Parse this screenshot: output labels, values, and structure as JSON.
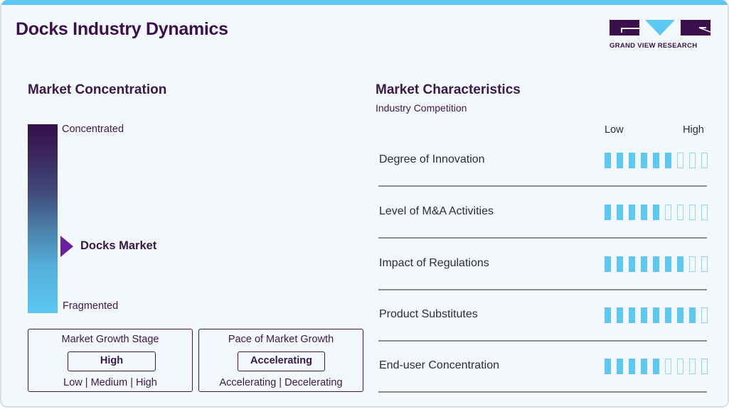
{
  "header": {
    "title": "Docks Industry Dynamics",
    "logo_text": "GRAND VIEW RESEARCH"
  },
  "colors": {
    "brand_purple": "#3a0f4b",
    "accent_blue": "#5bc9f2",
    "marker_purple": "#6a1fa0"
  },
  "market_concentration": {
    "heading": "Market Concentration",
    "top_label": "Concentrated",
    "bottom_label": "Fragmented",
    "marker_label": "Docks Market",
    "marker_position_pct": 64
  },
  "growth_stage": {
    "title": "Market Growth Stage",
    "value": "High",
    "options": "Low | Medium | High"
  },
  "growth_pace": {
    "title": "Pace of Market Growth",
    "value": "Accelerating",
    "options": "Accelerating | Decelerating"
  },
  "market_characteristics": {
    "heading": "Market Characteristics",
    "subheading": "Industry Competition",
    "scale_low": "Low",
    "scale_high": "High",
    "max_score": 9,
    "rows": [
      {
        "label": "Degree of Innovation",
        "score": 6
      },
      {
        "label": "Level of M&A Activities",
        "score": 5
      },
      {
        "label": "Impact of Regulations",
        "score": 7
      },
      {
        "label": "Product Substitutes",
        "score": 8
      },
      {
        "label": "End-user Concentration",
        "score": 5
      }
    ]
  }
}
